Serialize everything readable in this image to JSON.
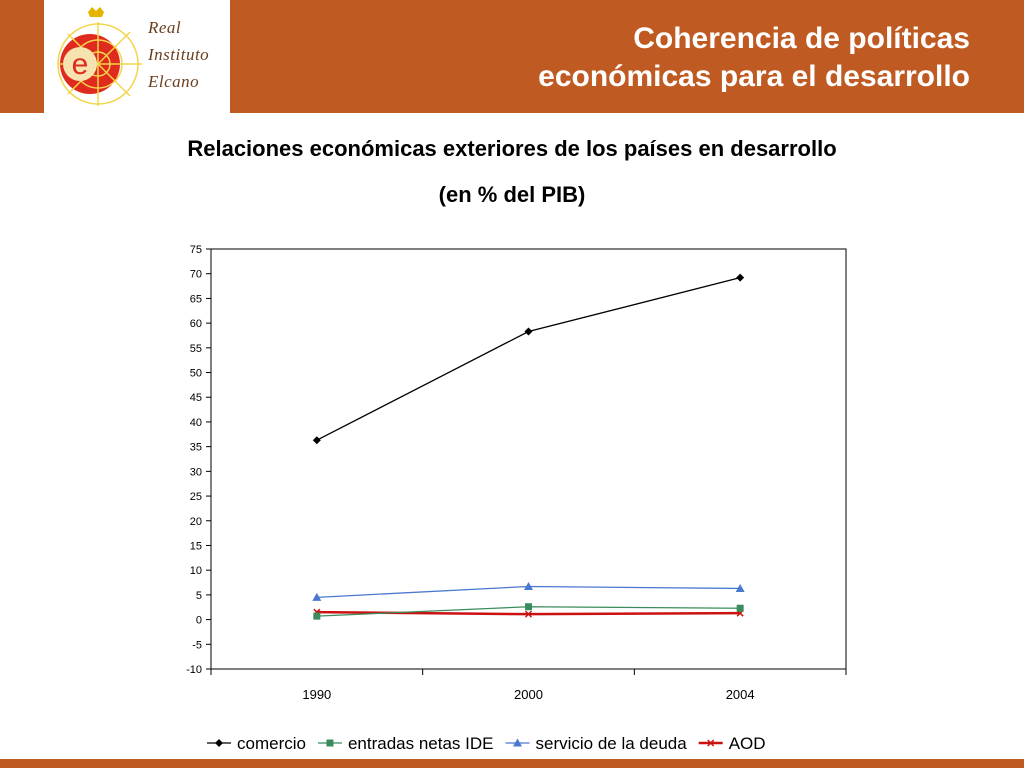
{
  "header": {
    "title_line1": "Coherencia de políticas",
    "title_line2": "económicas para el desarrollo",
    "logo_line1": "Real",
    "logo_line2": "Instituto",
    "logo_line3": "Elcano",
    "brand_color": "#bf5b22"
  },
  "chart_data": {
    "type": "line",
    "title": "Relaciones económicas exteriores de los países en desarrollo",
    "subtitle": "(en % del PIB)",
    "categories": [
      "1990",
      "2000",
      "2004"
    ],
    "ylim": [
      -10,
      75
    ],
    "yticks": [
      "75",
      "70",
      "65",
      "60",
      "55",
      "50",
      "45",
      "40",
      "35",
      "30",
      "25",
      "20",
      "15",
      "10",
      "5",
      "0",
      "-5",
      "-10"
    ],
    "grid": false,
    "legend_position": "bottom",
    "series": [
      {
        "name": "comercio",
        "values": [
          36.3,
          58.3,
          69.2
        ],
        "color": "#000000",
        "marker": "diamond"
      },
      {
        "name": "entradas netas IDE",
        "values": [
          0.7,
          2.6,
          2.3
        ],
        "color": "#3a8c5c",
        "marker": "square"
      },
      {
        "name": "servicio de la deuda",
        "values": [
          4.5,
          6.7,
          6.3
        ],
        "color": "#4a78d0",
        "marker": "triangle"
      },
      {
        "name": "AOD",
        "values": [
          1.5,
          1.1,
          1.3
        ],
        "color": "#cc1111",
        "marker": "x"
      }
    ]
  }
}
